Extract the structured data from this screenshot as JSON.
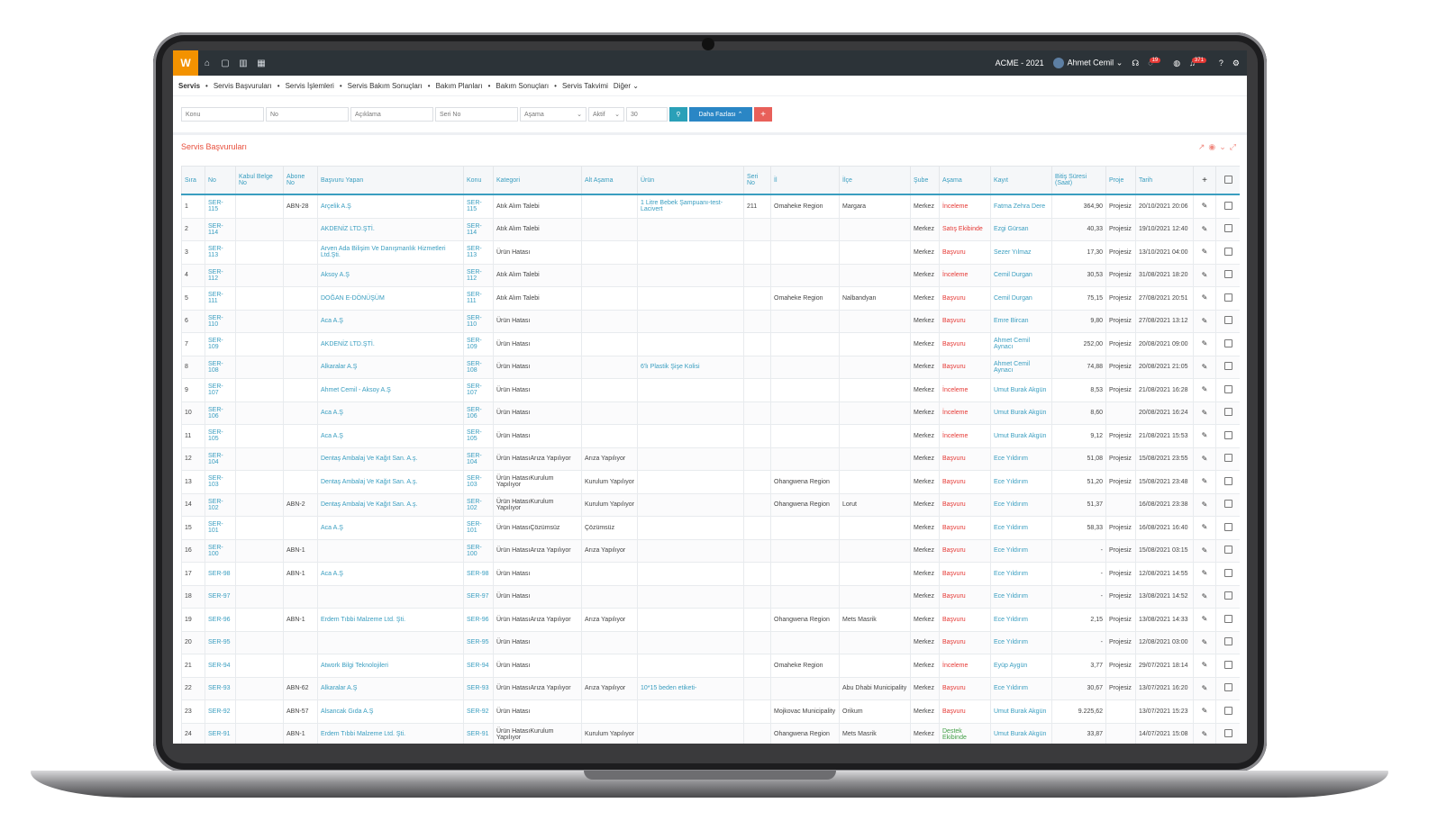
{
  "topbar": {
    "logo": "W",
    "company": "ACME - 2021",
    "user": "Ahmet Cemil",
    "headset_badge": "",
    "chat_badge": "19",
    "bell_badge": "371"
  },
  "nav": {
    "items": [
      "Servis",
      "Servis Başvuruları",
      "Servis İşlemleri",
      "Servis Bakım Sonuçları",
      "Bakım Planları",
      "Bakım Sonuçları",
      "Servis Takvimi",
      "Diğer"
    ]
  },
  "filters": {
    "konu": "Konu",
    "no": "No",
    "aciklama": "Açıklama",
    "seri_no": "Seri No",
    "asama": "Aşama",
    "aktif": "Aktif",
    "count": "30",
    "more": "Daha Fazlası",
    "add": "+"
  },
  "panel": {
    "title": "Servis Başvuruları"
  },
  "table": {
    "headers": [
      "Sıra",
      "No",
      "Kabul Belge No",
      "Abone No",
      "Başvuru Yapan",
      "Konu",
      "Kategori",
      "Alt Aşama",
      "Ürün",
      "Seri No",
      "İl",
      "İlçe",
      "Şube",
      "Aşama",
      "Kayıt",
      "Bitiş Süresi (Saat)",
      "Proje",
      "Tarih",
      "+",
      ""
    ],
    "rows": [
      [
        "1",
        "SER-115",
        "",
        "ABN-28",
        "Arçelik A.Ş",
        "SER-115",
        "Atık Alım Talebi",
        "",
        "1 Litre Bebek Şampuanı-test-Lacivert",
        "211",
        "Omaheke Region",
        "Margara",
        "Merkez",
        "İnceleme",
        "Fatma Zehra Dere",
        "364,90",
        "Projesiz",
        "20/10/2021 20:06"
      ],
      [
        "2",
        "SER-114",
        "",
        "",
        "AKDENİZ LTD.ŞTİ.",
        "SER-114",
        "Atık Alım Talebi",
        "",
        "",
        "",
        "",
        "",
        "Merkez",
        "Satış Ekibinde",
        "Ezgi Gürsan",
        "40,33",
        "Projesiz",
        "19/10/2021 12:40"
      ],
      [
        "3",
        "SER-113",
        "",
        "",
        "Arven Ada Bilişim Ve Danışmanlık Hizmetleri Ltd.Şti.",
        "SER-113",
        "Ürün Hatası",
        "",
        "",
        "",
        "",
        "",
        "Merkez",
        "Başvuru",
        "Sezer Yılmaz",
        "17,30",
        "Projesiz",
        "13/10/2021 04:00"
      ],
      [
        "4",
        "SER-112",
        "",
        "",
        "Aksoy A.Ş",
        "SER-112",
        "Atık Alım Talebi",
        "",
        "",
        "",
        "",
        "",
        "Merkez",
        "İnceleme",
        "Cemil Durgan",
        "30,53",
        "Projesiz",
        "31/08/2021 18:20"
      ],
      [
        "5",
        "SER-111",
        "",
        "",
        "DOĞAN E-DÖNÜŞÜM",
        "SER-111",
        "Atık Alım Talebi",
        "",
        "",
        "",
        "Omaheke Region",
        "Nalbandyan",
        "Merkez",
        "Başvuru",
        "Cemil Durgan",
        "75,15",
        "Projesiz",
        "27/08/2021 20:51"
      ],
      [
        "6",
        "SER-110",
        "",
        "",
        "Aca A.Ş",
        "SER-110",
        "Ürün Hatası",
        "",
        "",
        "",
        "",
        "",
        "Merkez",
        "Başvuru",
        "Emre Bircan",
        "9,80",
        "Projesiz",
        "27/08/2021 13:12"
      ],
      [
        "7",
        "SER-109",
        "",
        "",
        "AKDENİZ LTD.ŞTİ.",
        "SER-109",
        "Ürün Hatası",
        "",
        "",
        "",
        "",
        "",
        "Merkez",
        "Başvuru",
        "Ahmet Cemil Aynacı",
        "252,00",
        "Projesiz",
        "20/08/2021 09:00"
      ],
      [
        "8",
        "SER-108",
        "",
        "",
        "Alkaralar A.Ş",
        "SER-108",
        "Ürün Hatası",
        "",
        "6'lı Plastik Şişe Kolisi",
        "",
        "",
        "",
        "Merkez",
        "Başvuru",
        "Ahmet Cemil Aynacı",
        "74,88",
        "Projesiz",
        "20/08/2021 21:05"
      ],
      [
        "9",
        "SER-107",
        "",
        "",
        "Ahmet Cemil - Aksoy A.Ş",
        "SER-107",
        "Ürün Hatası",
        "",
        "",
        "",
        "",
        "",
        "Merkez",
        "İnceleme",
        "Umut Burak Akgün",
        "8,53",
        "Projesiz",
        "21/08/2021 16:28"
      ],
      [
        "10",
        "SER-106",
        "",
        "",
        "Aca A.Ş",
        "SER-106",
        "Ürün Hatası",
        "",
        "",
        "",
        "",
        "",
        "Merkez",
        "İnceleme",
        "Umut Burak Akgün",
        "8,60",
        "",
        "20/08/2021 16:24"
      ],
      [
        "11",
        "SER-105",
        "",
        "",
        "Aca A.Ş",
        "SER-105",
        "Ürün Hatası",
        "",
        "",
        "",
        "",
        "",
        "Merkez",
        "İnceleme",
        "Umut Burak Akgün",
        "9,12",
        "Projesiz",
        "21/08/2021 15:53"
      ],
      [
        "12",
        "SER-104",
        "",
        "",
        "Dentaş Ambalaj Ve Kağıt San. A.ş.",
        "SER-104",
        "Ürün HatasıArıza Yapılıyor",
        "Arıza Yapılıyor",
        "",
        "",
        "",
        "",
        "Merkez",
        "Başvuru",
        "Ece Yıldırım",
        "51,08",
        "Projesiz",
        "15/08/2021 23:55"
      ],
      [
        "13",
        "SER-103",
        "",
        "",
        "Dentaş Ambalaj Ve Kağıt San. A.ş.",
        "SER-103",
        "Ürün HatasıKurulum Yapılıyor",
        "Kurulum Yapılıyor",
        "",
        "",
        "Ohangwena Region",
        "",
        "Merkez",
        "Başvuru",
        "Ece Yıldırım",
        "51,20",
        "Projesiz",
        "15/08/2021 23:48"
      ],
      [
        "14",
        "SER-102",
        "",
        "ABN-2",
        "Dentaş Ambalaj Ve Kağıt San. A.ş.",
        "SER-102",
        "Ürün HatasıKurulum Yapılıyor",
        "Kurulum Yapılıyor",
        "",
        "",
        "Ohangwena Region",
        "Lorut",
        "Merkez",
        "Başvuru",
        "Ece Yıldırım",
        "51,37",
        "",
        "16/08/2021 23:38"
      ],
      [
        "15",
        "SER-101",
        "",
        "",
        "Aca A.Ş",
        "SER-101",
        "Ürün HatasıÇözümsüz",
        "Çözümsüz",
        "",
        "",
        "",
        "",
        "Merkez",
        "Başvuru",
        "Ece Yıldırım",
        "58,33",
        "Projesiz",
        "16/08/2021 16:40"
      ],
      [
        "16",
        "SER-100",
        "",
        "ABN-1",
        "",
        "SER-100",
        "Ürün HatasıArıza Yapılıyor",
        "Arıza Yapılıyor",
        "",
        "",
        "",
        "",
        "Merkez",
        "Başvuru",
        "Ece Yıldırım",
        "-",
        "Projesiz",
        "15/08/2021 03:15"
      ],
      [
        "17",
        "SER-98",
        "",
        "ABN-1",
        "Aca A.Ş",
        "SER-98",
        "Ürün Hatası",
        "",
        "",
        "",
        "",
        "",
        "Merkez",
        "Başvuru",
        "Ece Yıldırım",
        "-",
        "Projesiz",
        "12/08/2021 14:55"
      ],
      [
        "18",
        "SER-97",
        "",
        "",
        "",
        "SER-97",
        "Ürün Hatası",
        "",
        "",
        "",
        "",
        "",
        "Merkez",
        "Başvuru",
        "Ece Yıldırım",
        "-",
        "Projesiz",
        "13/08/2021 14:52"
      ],
      [
        "19",
        "SER-96",
        "",
        "ABN-1",
        "Erdem Tıbbi Malzeme Ltd. Şti.",
        "SER-96",
        "Ürün HatasıArıza Yapılıyor",
        "Arıza Yapılıyor",
        "",
        "",
        "Ohangwena Region",
        "Mets Masrik",
        "Merkez",
        "Başvuru",
        "Ece Yıldırım",
        "2,15",
        "Projesiz",
        "13/08/2021 14:33"
      ],
      [
        "20",
        "SER-95",
        "",
        "",
        "",
        "SER-95",
        "Ürün Hatası",
        "",
        "",
        "",
        "",
        "",
        "Merkez",
        "Başvuru",
        "Ece Yıldırım",
        "-",
        "Projesiz",
        "12/08/2021 03:00"
      ],
      [
        "21",
        "SER-94",
        "",
        "",
        "Atwork Bilgi Teknolojileri",
        "SER-94",
        "Ürün Hatası",
        "",
        "",
        "",
        "Omaheke Region",
        "",
        "Merkez",
        "İnceleme",
        "Eyüp Aygün",
        "3,77",
        "Projesiz",
        "29/07/2021 18:14"
      ],
      [
        "22",
        "SER-93",
        "",
        "ABN-62",
        "Alkaralar A.Ş",
        "SER-93",
        "Ürün HatasıArıza Yapılıyor",
        "Arıza Yapılıyor",
        "10*15 beden etiketi-",
        "",
        "",
        "Abu Dhabi Municipality",
        "Merkez",
        "Başvuru",
        "Ece Yıldırım",
        "30,67",
        "Projesiz",
        "13/07/2021 16:20"
      ],
      [
        "23",
        "SER-92",
        "",
        "ABN-57",
        "Alsancak Gıda A.Ş",
        "SER-92",
        "Ürün Hatası",
        "",
        "",
        "",
        "Mojkovac Municipality",
        "Orikum",
        "Merkez",
        "Başvuru",
        "Umut Burak Akgün",
        "9.225,62",
        "",
        "13/07/2021 15:23"
      ],
      [
        "24",
        "SER-91",
        "",
        "ABN-1",
        "Erdem Tıbbi Malzeme Ltd. Şti.",
        "SER-91",
        "Ürün HatasıKurulum Yapılıyor",
        "Kurulum Yapılıyor",
        "",
        "",
        "Ohangwena Region",
        "Mets Masrik",
        "Merkez",
        "Destek Ekibinde",
        "Umut Burak Akgün",
        "33,87",
        "",
        "14/07/2021 15:08"
      ]
    ],
    "status_colors": {
      "İnceleme": "#e53935",
      "Satış Ekibinde": "#e53935",
      "Başvuru": "#e53935",
      "Destek Ekibinde": "#43a047"
    }
  }
}
